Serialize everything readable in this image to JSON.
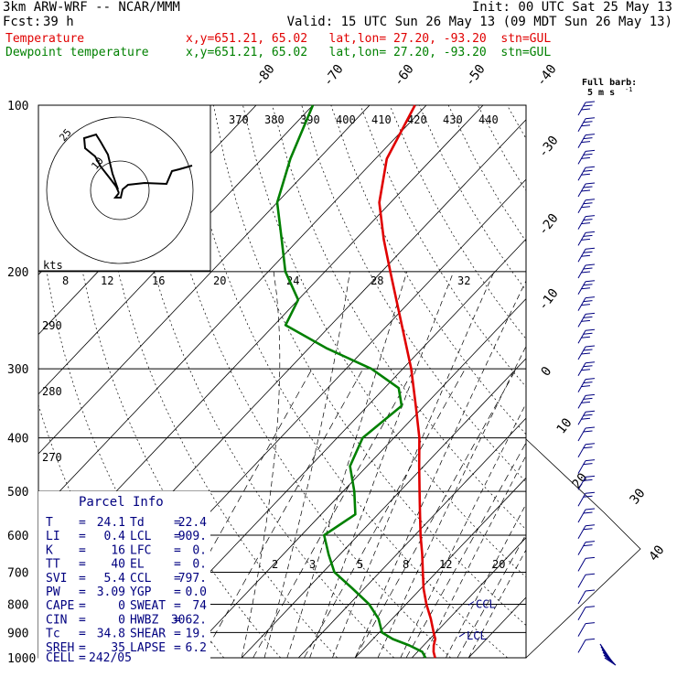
{
  "header": {
    "model": "3km ARW-WRF -- NCAR/MMM",
    "init": "Init: 00 UTC Sat 25 May 13",
    "fcst_label": "Fcst:",
    "fcst_value": "39 h",
    "valid": "Valid: 15 UTC Sun 26 May 13 (09 MDT Sun 26 May 13)",
    "temp_label": "Temperature",
    "temp_info": "x,y=651.21, 65.02   lat,lon= 27.20, -93.20  stn=GUL",
    "dew_label": "Dewpoint temperature",
    "dew_info": "x,y=651.21, 65.02   lat,lon= 27.20, -93.20  stn=GUL"
  },
  "colors": {
    "temperature": "#e00000",
    "dewpoint": "#008000",
    "wind": "#000080",
    "info": "#000080"
  },
  "barb_legend": {
    "line1": "Full barb:",
    "line2": "5 m s",
    "sup": "-1"
  },
  "hodograph": {
    "units": "kts",
    "ring_labels": [
      "10",
      "25"
    ]
  },
  "parcel_info": {
    "title": "Parcel Info",
    "rows": [
      [
        "T",
        "24.1",
        "Td",
        "22.4"
      ],
      [
        "LI",
        "0.4",
        "LCL",
        "909."
      ],
      [
        "K",
        "16",
        "LFC",
        "0."
      ],
      [
        "TT",
        "40",
        "EL",
        "0."
      ],
      [
        "SVI",
        "5.4",
        "CCL",
        "797."
      ],
      [
        "PW",
        "3.09",
        "YGP",
        "0.0"
      ],
      [
        "CAPE",
        "0",
        "SWEAT",
        "74"
      ],
      [
        "CIN",
        "0",
        "HWBZ",
        "3062."
      ],
      [
        "Tc",
        "34.8",
        "SHEAR",
        "19."
      ],
      [
        "SREH",
        "35",
        "LAPSE",
        "6.2"
      ]
    ],
    "cell_label": "CELL",
    "cell_value": "242/05"
  },
  "chart_data": {
    "type": "line",
    "pressure_levels": [
      100,
      200,
      300,
      400,
      500,
      600,
      700,
      800,
      900,
      1000
    ],
    "skewed_isotherm_labels": [
      "-80",
      "-70",
      "-60",
      "-50",
      "-40",
      "-30",
      "-20",
      "-10",
      "0",
      "10",
      "20",
      "30",
      "40"
    ],
    "theta_e_labels": [
      "370",
      "380",
      "390",
      "400",
      "410",
      "420",
      "430",
      "440"
    ],
    "theta_labels": [
      "290",
      "280",
      "270"
    ],
    "mixing_ratio_upper_labels": [
      "8",
      "12",
      "16",
      "20",
      "24",
      "28",
      "32"
    ],
    "mixing_ratio_lower_labels": [
      "2",
      "3",
      "5",
      "8",
      "12",
      "20"
    ],
    "markers": [
      "CCL",
      "LCL"
    ],
    "series": [
      {
        "name": "Temperature",
        "points": [
          [
            1000,
            24.1
          ],
          [
            975,
            22.8
          ],
          [
            950,
            21.8
          ],
          [
            925,
            21.0
          ],
          [
            900,
            19.6
          ],
          [
            850,
            16.8
          ],
          [
            800,
            13.6
          ],
          [
            750,
            10.5
          ],
          [
            700,
            7.6
          ],
          [
            650,
            4.5
          ],
          [
            600,
            1.0
          ],
          [
            550,
            -2.6
          ],
          [
            500,
            -6.5
          ],
          [
            450,
            -10.8
          ],
          [
            400,
            -15.5
          ],
          [
            350,
            -21.5
          ],
          [
            300,
            -28.5
          ],
          [
            250,
            -37.5
          ],
          [
            200,
            -48.5
          ],
          [
            175,
            -55.0
          ],
          [
            150,
            -62.0
          ],
          [
            125,
            -68.0
          ],
          [
            100,
            -72.0
          ]
        ]
      },
      {
        "name": "Dewpoint temperature",
        "points": [
          [
            1000,
            22.4
          ],
          [
            975,
            20.8
          ],
          [
            950,
            17.5
          ],
          [
            925,
            13.5
          ],
          [
            900,
            10.5
          ],
          [
            850,
            7.6
          ],
          [
            800,
            3.5
          ],
          [
            750,
            -2.0
          ],
          [
            700,
            -8.0
          ],
          [
            650,
            -12.0
          ],
          [
            600,
            -16.0
          ],
          [
            550,
            -14.0
          ],
          [
            500,
            -18.0
          ],
          [
            450,
            -23.0
          ],
          [
            400,
            -25.5
          ],
          [
            350,
            -24.0
          ],
          [
            325,
            -27.5
          ],
          [
            300,
            -35.5
          ],
          [
            275,
            -47.0
          ],
          [
            250,
            -58.0
          ],
          [
            225,
            -60.0
          ],
          [
            200,
            -67.0
          ],
          [
            175,
            -73.0
          ],
          [
            150,
            -80.0
          ],
          [
            125,
            -85.0
          ],
          [
            100,
            -90.0
          ]
        ]
      }
    ],
    "wind_profile_note": "barbs every level, mostly light westerly"
  }
}
